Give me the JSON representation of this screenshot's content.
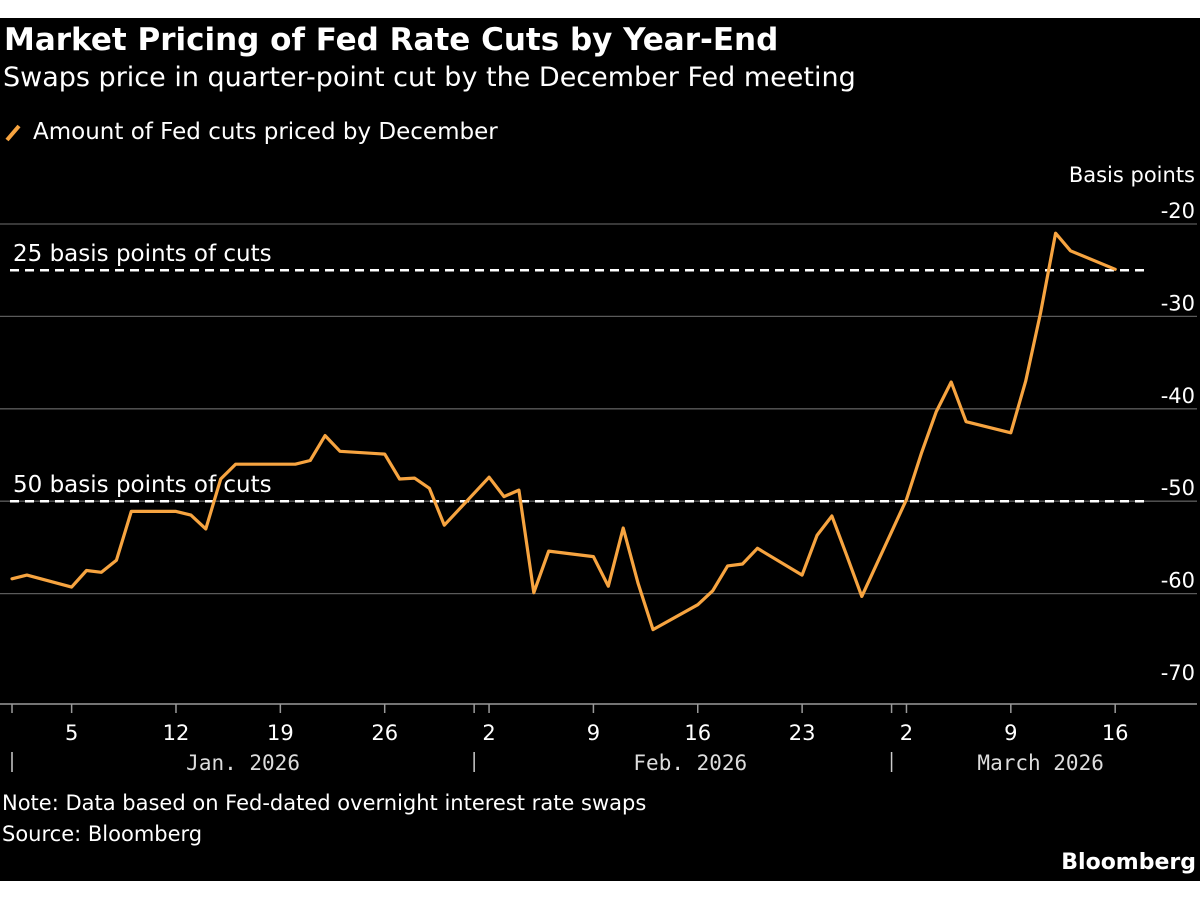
{
  "chart_data": {
    "type": "line",
    "title": "Market Pricing of Fed Rate Cuts by Year-End",
    "subtitle": "Swaps price in quarter-point cut by the December Fed meeting",
    "ylabel": "Basis points",
    "ylim": [
      -70,
      -20
    ],
    "yticks": [
      -20,
      -30,
      -40,
      -50,
      -60,
      -70
    ],
    "xlim": [
      0,
      76
    ],
    "grid": true,
    "xtick_labels": [
      {
        "x": 4,
        "label": "5"
      },
      {
        "x": 11,
        "label": "12"
      },
      {
        "x": 18,
        "label": "19"
      },
      {
        "x": 25,
        "label": "26"
      },
      {
        "x": 32,
        "label": "2"
      },
      {
        "x": 39,
        "label": "9"
      },
      {
        "x": 46,
        "label": "16"
      },
      {
        "x": 53,
        "label": "23"
      },
      {
        "x": 60,
        "label": "2"
      },
      {
        "x": 67,
        "label": "9"
      },
      {
        "x": 74,
        "label": "16"
      }
    ],
    "month_boundaries": [
      0,
      31,
      59
    ],
    "months": [
      {
        "x": 15.5,
        "label": "Jan. 2026"
      },
      {
        "x": 45.5,
        "label": "Feb. 2026"
      },
      {
        "x": 69,
        "label": "March 2026"
      }
    ],
    "reference_lines": [
      {
        "y": -25,
        "label": "25 basis points of cuts"
      },
      {
        "y": -50,
        "label": "50 basis points of cuts"
      }
    ],
    "series": [
      {
        "name": "Amount of Fed cuts priced by December",
        "color": "#f7a440",
        "points": [
          {
            "x": 0,
            "y": -58.4
          },
          {
            "x": 1,
            "y": -58.0
          },
          {
            "x": 4,
            "y": -59.3
          },
          {
            "x": 5,
            "y": -57.5
          },
          {
            "x": 6,
            "y": -57.7
          },
          {
            "x": 7,
            "y": -56.4
          },
          {
            "x": 8,
            "y": -51.1
          },
          {
            "x": 11,
            "y": -51.1
          },
          {
            "x": 12,
            "y": -51.5
          },
          {
            "x": 13,
            "y": -53.0
          },
          {
            "x": 14,
            "y": -47.6
          },
          {
            "x": 15,
            "y": -46.0
          },
          {
            "x": 18,
            "y": -46.0
          },
          {
            "x": 19,
            "y": -46.0
          },
          {
            "x": 20,
            "y": -45.6
          },
          {
            "x": 21,
            "y": -42.9
          },
          {
            "x": 22,
            "y": -44.6
          },
          {
            "x": 25,
            "y": -44.9
          },
          {
            "x": 26,
            "y": -47.6
          },
          {
            "x": 27,
            "y": -47.5
          },
          {
            "x": 28,
            "y": -48.6
          },
          {
            "x": 29,
            "y": -52.6
          },
          {
            "x": 32,
            "y": -47.4
          },
          {
            "x": 33,
            "y": -49.5
          },
          {
            "x": 34,
            "y": -48.8
          },
          {
            "x": 35,
            "y": -59.9
          },
          {
            "x": 36,
            "y": -55.4
          },
          {
            "x": 39,
            "y": -56.0
          },
          {
            "x": 40,
            "y": -59.2
          },
          {
            "x": 41,
            "y": -52.9
          },
          {
            "x": 42,
            "y": -58.9
          },
          {
            "x": 43,
            "y": -63.9
          },
          {
            "x": 46,
            "y": -61.2
          },
          {
            "x": 47,
            "y": -59.7
          },
          {
            "x": 48,
            "y": -57.0
          },
          {
            "x": 49,
            "y": -56.8
          },
          {
            "x": 50,
            "y": -55.1
          },
          {
            "x": 53,
            "y": -58.0
          },
          {
            "x": 54,
            "y": -53.7
          },
          {
            "x": 55,
            "y": -51.6
          },
          {
            "x": 56,
            "y": -55.9
          },
          {
            "x": 57,
            "y": -60.3
          },
          {
            "x": 60,
            "y": -49.8
          },
          {
            "x": 61,
            "y": -44.8
          },
          {
            "x": 62,
            "y": -40.3
          },
          {
            "x": 63,
            "y": -37.1
          },
          {
            "x": 64,
            "y": -41.4
          },
          {
            "x": 67,
            "y": -42.6
          },
          {
            "x": 68,
            "y": -37.0
          },
          {
            "x": 69,
            "y": -29.6
          },
          {
            "x": 70,
            "y": -21.0
          },
          {
            "x": 71,
            "y": -22.9
          },
          {
            "x": 74,
            "y": -24.9
          }
        ]
      }
    ],
    "note": "Note: Data based on Fed-dated overnight interest rate swaps",
    "source": "Source: Bloomberg"
  },
  "branding": "Bloomberg",
  "colors": {
    "background": "#000000",
    "line": "#f7a440",
    "grid": "#5a5a5a",
    "text": "#ffffff",
    "reference": "#ffffff"
  }
}
